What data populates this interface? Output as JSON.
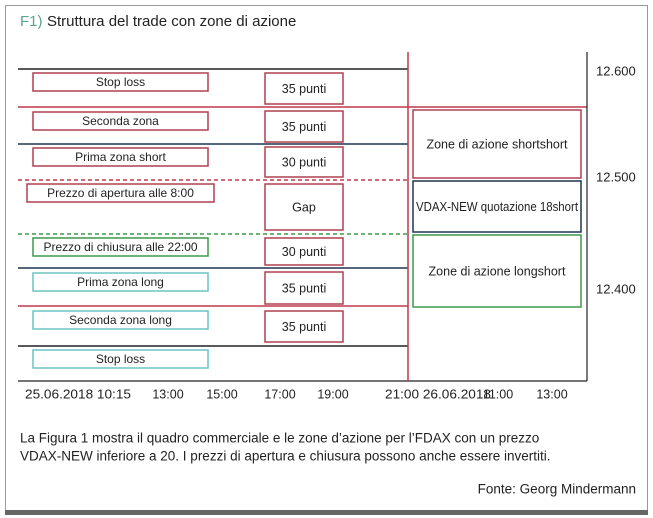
{
  "header": {
    "label": "F1)",
    "title": "Struttura del trade con zone di azione"
  },
  "left_boxes": [
    "Stop loss",
    "Seconda zona",
    "Prima zona short",
    "Prezzo di apertura alle 8:00",
    "Prezzo di chiusura alle 22:00",
    "Prima zona long",
    "Seconda zona long",
    "Stop loss"
  ],
  "point_boxes": [
    "35 punti",
    "35 punti",
    "30 punti",
    "Gap",
    "30 punti",
    "35 punti",
    "35 punti"
  ],
  "right_boxes": [
    "Zone di azione shortshort",
    "VDAX-NEW quotazione 18short",
    "Zone di azione longshort"
  ],
  "price_labels": [
    "12.600",
    "12.500",
    "12.400"
  ],
  "time_labels": [
    "25.06.2018 10:15",
    "13:00",
    "15:00",
    "17:00",
    "19:00",
    "21:00 26.06.2018",
    "11:00",
    "13:00"
  ],
  "caption": [
    "La Figura 1 mostra il quadro commerciale e le zone d’azione per l’FDAX con un prezzo",
    "VDAX-NEW inferiore a 20. I prezzi di apertura e chiusura possono anche essere invertiti."
  ],
  "source": "Fonte: Georg Mindermann"
}
